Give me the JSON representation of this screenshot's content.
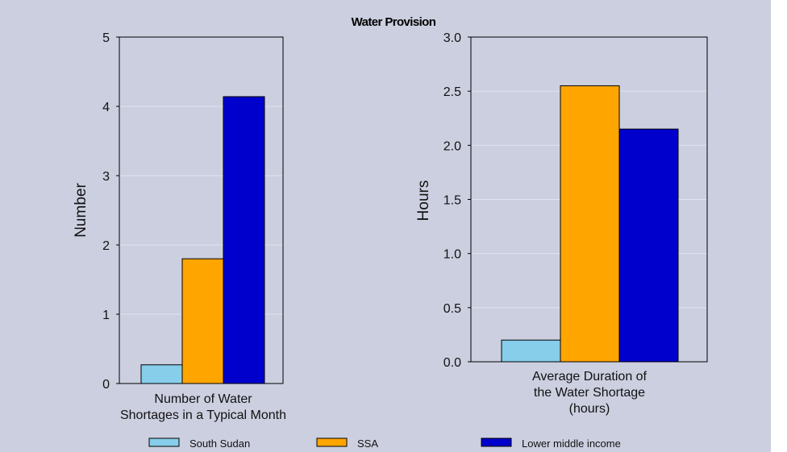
{
  "chart_data": {
    "title": "Water Provision",
    "legend": {
      "placement": "bottom",
      "entries": [
        {
          "name": "South Sudan",
          "color": "#87ceeb"
        },
        {
          "name": "SSA",
          "color": "#ffa500"
        },
        {
          "name": "Lower middle income",
          "color": "#0000cd"
        }
      ]
    },
    "charts": [
      {
        "type": "bar",
        "ylabel": "Number",
        "ylim": [
          0,
          5
        ],
        "yticks": [
          "0",
          "1",
          "2",
          "3",
          "4",
          "5"
        ],
        "category_lines": [
          "Number of Water",
          "Shortages in a Typical Month"
        ],
        "values": [
          0.27,
          1.8,
          4.14
        ],
        "grid": true
      },
      {
        "type": "bar",
        "ylabel": "Hours",
        "ylim": [
          0,
          3
        ],
        "yticks": [
          "0.0",
          "0.5",
          "1.0",
          "1.5",
          "2.0",
          "2.5",
          "3.0"
        ],
        "category_lines": [
          "Average Duration of",
          "the Water Shortage",
          "(hours)"
        ],
        "values": [
          0.2,
          2.55,
          2.15
        ],
        "grid": true
      }
    ]
  }
}
